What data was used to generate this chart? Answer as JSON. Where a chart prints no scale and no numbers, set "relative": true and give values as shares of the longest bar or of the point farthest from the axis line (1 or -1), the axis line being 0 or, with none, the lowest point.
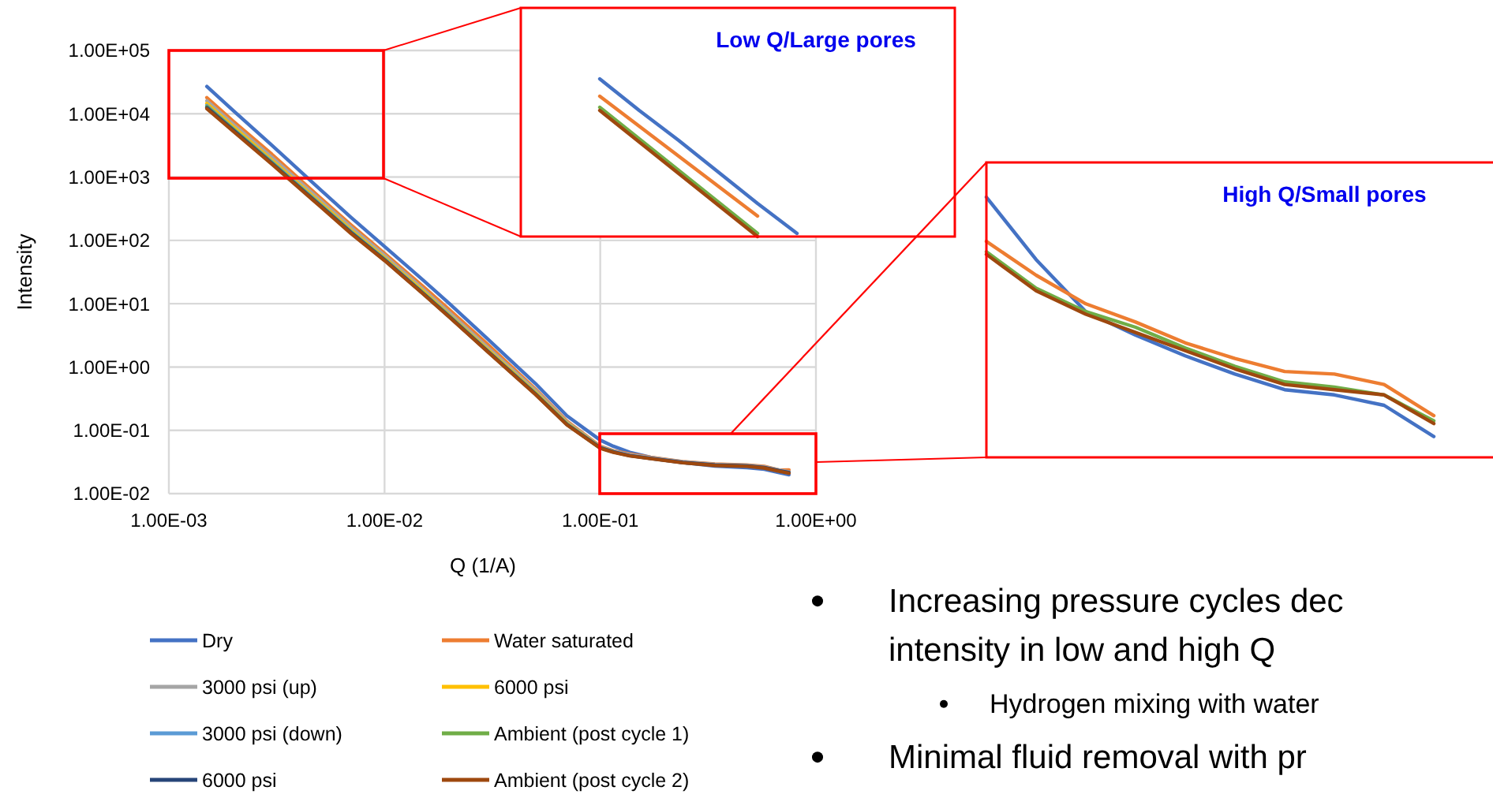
{
  "chart_data": [
    {
      "type": "line",
      "xlabel": "Q (1/A)",
      "ylabel": "Intensity",
      "log": "xy",
      "grid": true,
      "legend": "bottom",
      "line_style": "solid",
      "xlim": [
        0.001,
        1
      ],
      "xticks": [
        {
          "value": 0.001,
          "label": "1.00E-03"
        },
        {
          "value": 0.01,
          "label": "1.00E-02"
        },
        {
          "value": 0.1,
          "label": "1.00E-01"
        },
        {
          "value": 1,
          "label": "1.00E+00"
        }
      ],
      "ylim": [
        0.01,
        100000
      ],
      "yticks": [
        {
          "value": 0.01,
          "label": "1.00E-02"
        },
        {
          "value": 0.1,
          "label": "1.00E-01"
        },
        {
          "value": 1,
          "label": "1.00E+00"
        },
        {
          "value": 10,
          "label": "1.00E+01"
        },
        {
          "value": 100,
          "label": "1.00E+02"
        },
        {
          "value": 1000,
          "label": "1.00E+03"
        },
        {
          "value": 10000,
          "label": "1.00E+04"
        },
        {
          "value": 100000,
          "label": "1.00E+05"
        }
      ],
      "x": [
        0.0015,
        0.002,
        0.003,
        0.005,
        0.007,
        0.01,
        0.015,
        0.02,
        0.03,
        0.05,
        0.07,
        0.1,
        0.115,
        0.137,
        0.171,
        0.241,
        0.34,
        0.479,
        0.576,
        0.675,
        0.75
      ],
      "series": [
        {
          "name": "Dry",
          "color": "#4472c4",
          "values": [
            27000,
            11000,
            3200,
            650,
            230,
            80,
            24,
            10,
            2.8,
            0.55,
            0.17,
            0.07,
            0.056,
            0.045,
            0.0375,
            0.031,
            0.0273,
            0.0258,
            0.0243,
            0.0215,
            0.0199
          ]
        },
        {
          "name": "Water saturated",
          "color": "#ed7d31",
          "values": [
            18000,
            7500,
            2300,
            480,
            175,
            62,
            19,
            8,
            2.3,
            0.45,
            0.14,
            0.056,
            0.0476,
            0.0423,
            0.0375,
            0.032,
            0.0294,
            0.0284,
            0.027,
            0.0235,
            0.0236
          ]
        },
        {
          "name": "3000 psi (up)",
          "color": "#a5a5a5",
          "values": [
            16000,
            6700,
            2050,
            440,
            160,
            58,
            17.2,
            7.2,
            2.05,
            0.43,
            0.135,
            0.055,
            0.047,
            0.0412,
            0.037,
            0.0318,
            0.029,
            0.028,
            0.0264,
            0.0236,
            0.022
          ]
        },
        {
          "name": "6000 psi",
          "color": "#ffc000",
          "values": [
            14500,
            6100,
            1850,
            400,
            145,
            53,
            16,
            6.6,
            1.9,
            0.4,
            0.13,
            0.054,
            null,
            null,
            null,
            null,
            null,
            null,
            null,
            null,
            null
          ]
        },
        {
          "name": "3000 psi (down)",
          "color": "#5b9bd5",
          "values": [
            13500,
            5700,
            1750,
            380,
            138,
            51,
            15.2,
            6.4,
            1.82,
            0.385,
            0.126,
            0.053,
            0.0458,
            0.04,
            0.0361,
            0.031,
            0.0282,
            0.0273,
            0.0256,
            0.0228,
            0.0212
          ]
        },
        {
          "name": "Ambient (post cycle 1)",
          "color": "#70ad47",
          "values": [
            13000,
            5600,
            1700,
            370,
            135,
            50,
            15,
            6.3,
            1.8,
            0.38,
            0.125,
            0.0528,
            0.0458,
            null,
            null,
            null,
            null,
            null,
            null,
            null,
            null
          ]
        },
        {
          "name": "6000 psi",
          "color": "#264478",
          "values": [
            12500,
            5400,
            1650,
            360,
            132,
            49,
            14.7,
            6.2,
            1.78,
            0.375,
            0.124,
            0.053,
            0.0455,
            0.0398,
            0.036,
            0.031,
            0.0283,
            0.0274,
            0.0258,
            0.023,
            0.0216
          ]
        },
        {
          "name": "Ambient (post cycle 2)",
          "color": "#9e480e",
          "values": [
            12000,
            5200,
            1600,
            350,
            128,
            48,
            14.5,
            6.1,
            1.75,
            0.37,
            0.122,
            0.052,
            0.045,
            0.0395,
            0.0357,
            0.0307,
            0.0279,
            0.027,
            0.0254,
            0.0226,
            0.021
          ]
        }
      ],
      "annotations": [
        "Increasing pressure cycles dec",
        "intensity in low and high Q",
        "Hydrogen mixing with water",
        "Minimal fluid removal with pr"
      ]
    },
    {
      "type": "line",
      "title": "Low Q/Large pores",
      "relative": true,
      "categories": [
        null,
        null,
        null,
        null,
        null,
        null,
        null,
        null,
        null,
        null,
        null,
        null
      ],
      "series": [
        {
          "color": "#4472c4",
          "values": [
            null,
            null,
            1,
            0.8,
            0.61,
            0.41,
            0.21,
            0.02,
            null,
            null,
            null,
            null
          ]
        },
        {
          "color": "#ed7d31",
          "values": [
            null,
            null,
            0.89,
            0.7,
            0.51,
            0.32,
            0.13,
            null,
            null,
            null,
            null,
            null
          ]
        },
        {
          "color": "#70ad47",
          "values": [
            null,
            null,
            0.82,
            0.62,
            0.42,
            0.22,
            0.02,
            null,
            null,
            null,
            null,
            null
          ]
        },
        {
          "color": "#9e480e",
          "values": [
            null,
            null,
            0.8,
            0.6,
            0.4,
            0.2,
            0,
            null,
            null,
            null,
            null,
            null
          ]
        }
      ]
    },
    {
      "type": "line",
      "title": "High Q/Small pores",
      "relative": true,
      "categories": [
        null,
        null,
        null,
        null,
        null,
        null,
        null,
        null,
        null,
        null,
        null
      ],
      "series": [
        {
          "color": "#4472c4",
          "values": [
            1,
            0.76,
            0.56,
            0.47,
            0.39,
            0.32,
            0.26,
            0.24,
            0.2,
            0.08,
            null
          ]
        },
        {
          "color": "#ed7d31",
          "values": [
            0.83,
            0.7,
            0.59,
            0.52,
            0.44,
            0.38,
            0.33,
            0.32,
            0.28,
            0.16,
            null
          ]
        },
        {
          "color": "#70ad47",
          "values": [
            0.79,
            0.65,
            0.56,
            0.5,
            0.42,
            0.35,
            0.29,
            0.27,
            0.24,
            0.14,
            null
          ]
        },
        {
          "color": "#9e480e",
          "values": [
            0.78,
            0.64,
            0.55,
            0.48,
            0.41,
            0.34,
            0.28,
            0.26,
            0.24,
            0.13,
            null
          ]
        }
      ]
    }
  ]
}
